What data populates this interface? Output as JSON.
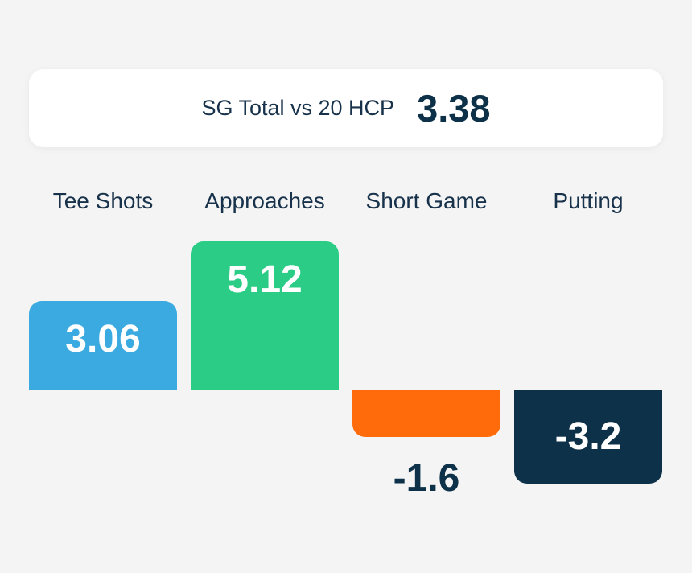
{
  "header": {
    "label": "SG Total vs 20 HCP",
    "value": "3.38"
  },
  "chart_data": {
    "type": "bar",
    "categories": [
      "Tee Shots",
      "Approaches",
      "Short Game",
      "Putting"
    ],
    "values": [
      3.06,
      5.12,
      -1.6,
      -3.2
    ],
    "value_labels": [
      "3.06",
      "5.12",
      "-1.6",
      "-3.2"
    ],
    "colors": [
      "#3aaae0",
      "#2bcc85",
      "#ff6a0a",
      "#0d3148"
    ],
    "label_colors": [
      "#ffffff",
      "#ffffff",
      "#0d3148",
      "#ffffff"
    ],
    "title": "",
    "xlabel": "",
    "ylabel": "",
    "grid": false
  }
}
